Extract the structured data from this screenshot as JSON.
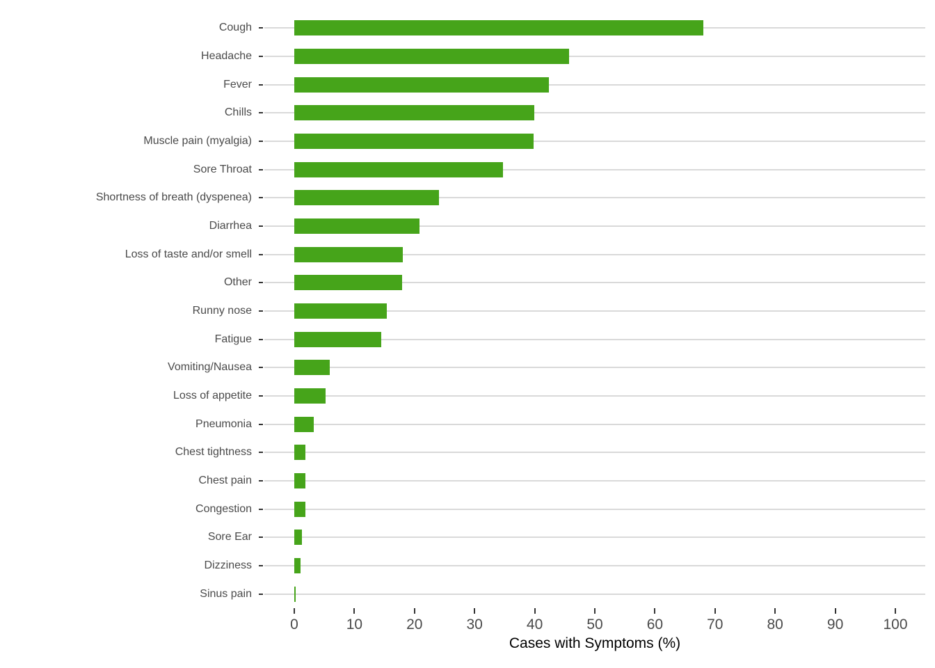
{
  "chart_data": {
    "type": "bar",
    "orientation": "horizontal",
    "title": "",
    "xlabel": "Cases with Symptoms (%)",
    "ylabel": "",
    "categories": [
      "Cough",
      "Headache",
      "Fever",
      "Chills",
      "Muscle pain (myalgia)",
      "Sore Throat",
      "Shortness of breath (dyspenea)",
      "Diarrhea",
      "Loss of taste and/or smell",
      "Other",
      "Runny nose",
      "Fatigue",
      "Vomiting/Nausea",
      "Loss of appetite",
      "Pneumonia",
      "Chest tightness",
      "Chest pain",
      "Congestion",
      "Sore Ear",
      "Dizziness",
      "Sinus pain"
    ],
    "values": [
      68.1,
      45.7,
      42.4,
      39.9,
      39.8,
      34.7,
      24.1,
      20.8,
      18.0,
      17.9,
      15.4,
      14.5,
      5.9,
      5.2,
      3.2,
      1.9,
      1.9,
      1.9,
      1.3,
      1.0,
      0.25
    ],
    "xlim": [
      0,
      100
    ],
    "xticks": [
      0,
      10,
      20,
      30,
      40,
      50,
      60,
      70,
      80,
      90,
      100
    ],
    "grid": "horizontal-only",
    "legend": "none",
    "colors": {
      "bar": "#46a41a",
      "gridline": "#d9d9d9",
      "axis_text": "#4a4a4a",
      "tick_mark": "#333333",
      "axis_title": "#000000",
      "background": "#ffffff"
    }
  }
}
